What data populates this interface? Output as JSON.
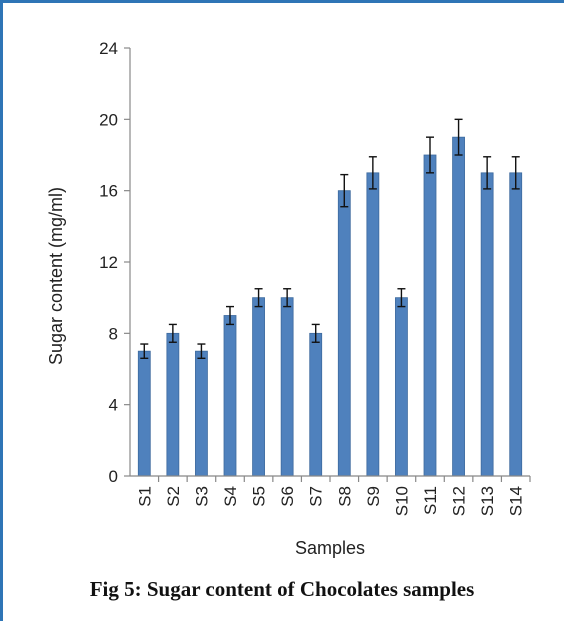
{
  "caption": "Fig 5: Sugar content of Chocolates samples",
  "colors": {
    "bar": "#4f81bd",
    "bar_edge": "#3d6a9e",
    "frame": "#2e75b6",
    "axis": "#888888",
    "text": "#222222"
  },
  "chart_data": {
    "type": "bar",
    "title": "",
    "xlabel": "Samples",
    "ylabel": "Sugar content (mg/ml)",
    "ylim": [
      0,
      24
    ],
    "yticks": [
      0,
      4,
      8,
      12,
      16,
      20,
      24
    ],
    "grid": false,
    "categories": [
      "S1",
      "S2",
      "S3",
      "S4",
      "S5",
      "S6",
      "S7",
      "S8",
      "S9",
      "S10",
      "S11",
      "S12",
      "S13",
      "S14"
    ],
    "values": [
      7,
      8,
      7,
      9,
      10,
      10,
      8,
      16,
      17,
      10,
      18,
      19,
      17,
      17
    ],
    "error": [
      0.4,
      0.5,
      0.4,
      0.5,
      0.5,
      0.5,
      0.5,
      0.9,
      0.9,
      0.5,
      1.0,
      1.0,
      0.9,
      0.9
    ]
  }
}
